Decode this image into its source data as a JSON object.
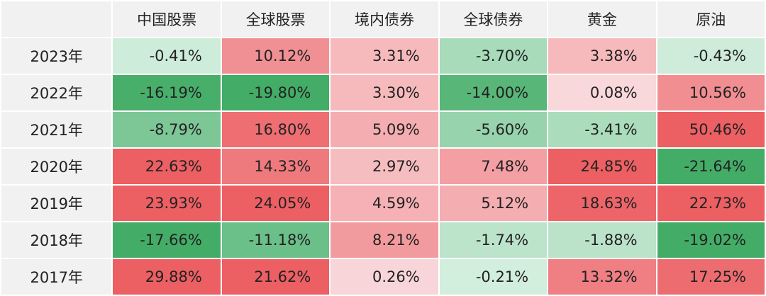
{
  "chart_data": {
    "type": "heatmap",
    "columns": [
      "中国股票",
      "全球股票",
      "境内债券",
      "全球债券",
      "黄金",
      "原油"
    ],
    "rows": [
      "2023年",
      "2022年",
      "2021年",
      "2020年",
      "2019年",
      "2018年",
      "2017年"
    ],
    "values": [
      [
        -0.41,
        10.12,
        3.31,
        -3.7,
        3.38,
        -0.43
      ],
      [
        -16.19,
        -19.8,
        3.3,
        -14.0,
        0.08,
        10.56
      ],
      [
        -8.79,
        16.8,
        5.09,
        -5.6,
        -3.41,
        50.46
      ],
      [
        22.63,
        14.33,
        2.97,
        7.48,
        24.85,
        -21.64
      ],
      [
        23.93,
        24.05,
        4.59,
        5.12,
        18.63,
        22.73
      ],
      [
        -17.66,
        -11.18,
        8.21,
        -1.74,
        -1.88,
        -19.02
      ],
      [
        29.88,
        21.62,
        0.26,
        -0.21,
        13.32,
        17.25
      ]
    ],
    "labels": [
      [
        "-0.41%",
        "10.12%",
        "3.31%",
        "-3.70%",
        "3.38%",
        "-0.43%"
      ],
      [
        "-16.19%",
        "-19.80%",
        "3.30%",
        "-14.00%",
        "0.08%",
        "10.56%"
      ],
      [
        "-8.79%",
        "16.80%",
        "5.09%",
        "-5.60%",
        "-3.41%",
        "50.46%"
      ],
      [
        "22.63%",
        "14.33%",
        "2.97%",
        "7.48%",
        "24.85%",
        "-21.64%"
      ],
      [
        "23.93%",
        "24.05%",
        "4.59%",
        "5.12%",
        "18.63%",
        "22.73%"
      ],
      [
        "-17.66%",
        "-11.18%",
        "8.21%",
        "-1.74%",
        "-1.88%",
        "-19.02%"
      ],
      [
        "29.88%",
        "21.62%",
        "0.26%",
        "-0.21%",
        "13.32%",
        "17.25%"
      ]
    ],
    "colors": {
      "positive_light": "#f9dadd",
      "positive_strong": "#ec5f63",
      "negative_light": "#d7f0e1",
      "negative_strong": "#43ad67",
      "header_background": "#f1f1f1",
      "grid_line": "#ffffff"
    }
  }
}
